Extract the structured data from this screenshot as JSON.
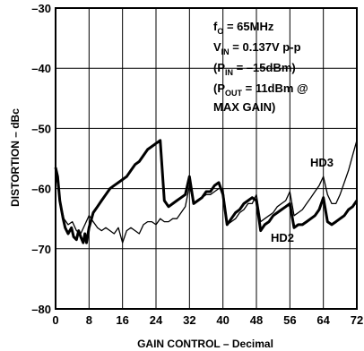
{
  "chart_data": {
    "type": "line",
    "title": "",
    "xlabel": "GAIN CONTROL – Decimal",
    "ylabel": "DISTORTION – dBc",
    "xlim": [
      0,
      72
    ],
    "ylim": [
      -80,
      -30
    ],
    "x_ticks": [
      "0",
      "8",
      "16",
      "24",
      "32",
      "40",
      "48",
      "56",
      "64",
      "72"
    ],
    "y_ticks": [
      "–30",
      "–40",
      "–50",
      "–60",
      "–70",
      "–80"
    ],
    "grid": true,
    "annotations": {
      "line1": {
        "main": "f",
        "sub": "O",
        "rest": " = 65MHz"
      },
      "line2": {
        "main": "V",
        "sub": "IN",
        "rest": " = 0.137V p-p"
      },
      "line3": {
        "pre": "(P",
        "sub": "IN",
        "rest": " = –15dBm)"
      },
      "line4": {
        "pre": "(P",
        "sub": "OUT",
        "rest": " = 11dBm @"
      },
      "line5": "MAX GAIN)"
    },
    "series": [
      {
        "name": "HD2",
        "x": [
          0,
          0.5,
          1,
          1.8,
          2.3,
          3,
          3.8,
          4.3,
          5,
          5.5,
          6,
          6.6,
          7,
          7.4,
          8,
          9,
          10,
          11,
          12,
          13,
          14,
          15,
          16,
          17,
          18,
          19,
          20,
          21,
          22,
          23,
          24,
          25,
          26,
          27,
          28,
          29,
          30,
          31,
          32,
          33,
          34,
          35,
          36,
          37,
          38,
          39,
          40,
          41,
          42,
          43,
          44,
          45,
          46,
          47,
          48,
          49,
          50,
          51,
          52,
          53,
          54,
          55,
          56,
          57,
          58,
          59,
          60,
          61,
          62,
          63,
          64,
          65,
          66,
          67,
          68,
          69,
          70,
          71,
          72
        ],
        "y": [
          -56.5,
          -58,
          -62,
          -65,
          -66.5,
          -67.5,
          -66.5,
          -68,
          -68.5,
          -67,
          -68,
          -69,
          -67.5,
          -69,
          -66.5,
          -64,
          -63,
          -62,
          -61,
          -60,
          -59.5,
          -59,
          -58.5,
          -58,
          -57,
          -56,
          -55.5,
          -54.5,
          -53.5,
          -53,
          -52.5,
          -52,
          -62,
          -63,
          -62.5,
          -62,
          -61.5,
          -61,
          -58,
          -62.5,
          -62,
          -61.5,
          -60.5,
          -60.5,
          -59.5,
          -59,
          -61,
          -66,
          -65,
          -64,
          -63.5,
          -62.5,
          -62,
          -61.5,
          -62,
          -67,
          -66,
          -65.5,
          -64.5,
          -64,
          -63.5,
          -63,
          -62.5,
          -66.5,
          -66,
          -66,
          -65.5,
          -65,
          -64.5,
          -63.5,
          -61.5,
          -65.5,
          -66,
          -65.5,
          -65,
          -64.5,
          -63.5,
          -63,
          -62
        ]
      },
      {
        "name": "HD3",
        "x": [
          0,
          1,
          2,
          3,
          4,
          5,
          6,
          7,
          8,
          9,
          10,
          11,
          12,
          13,
          14,
          15,
          16,
          17,
          18,
          19,
          20,
          21,
          22,
          23,
          24,
          25,
          26,
          27,
          28,
          29,
          30,
          31,
          32,
          33,
          34,
          35,
          36,
          37,
          38,
          39,
          40,
          41,
          42,
          43,
          44,
          45,
          46,
          47,
          48,
          49,
          50,
          51,
          52,
          53,
          54,
          55,
          56,
          57,
          58,
          59,
          60,
          61,
          62,
          63,
          64,
          65,
          66,
          67,
          68,
          69,
          70,
          71,
          72
        ],
        "y": [
          -57,
          -62,
          -65,
          -66,
          -65.5,
          -67,
          -67.5,
          -66,
          -64.5,
          -65.5,
          -66.5,
          -67,
          -66.5,
          -67,
          -67.5,
          -66.5,
          -69,
          -67,
          -66.5,
          -67,
          -67.5,
          -66,
          -65.5,
          -65.5,
          -66,
          -65,
          -65.5,
          -65.5,
          -65,
          -65,
          -64,
          -63,
          -59.5,
          -62.5,
          -62,
          -61.5,
          -61,
          -61,
          -60.5,
          -60,
          -60,
          -66,
          -65.5,
          -65,
          -64,
          -63.5,
          -62.5,
          -62.5,
          -61,
          -65.5,
          -65,
          -64.5,
          -64,
          -63,
          -62.5,
          -62,
          -60.5,
          -64.5,
          -64,
          -63.5,
          -62.5,
          -61.5,
          -60.5,
          -59.5,
          -58,
          -61,
          -62.5,
          -62.5,
          -61,
          -59,
          -57,
          -54.5,
          -52
        ]
      }
    ]
  }
}
